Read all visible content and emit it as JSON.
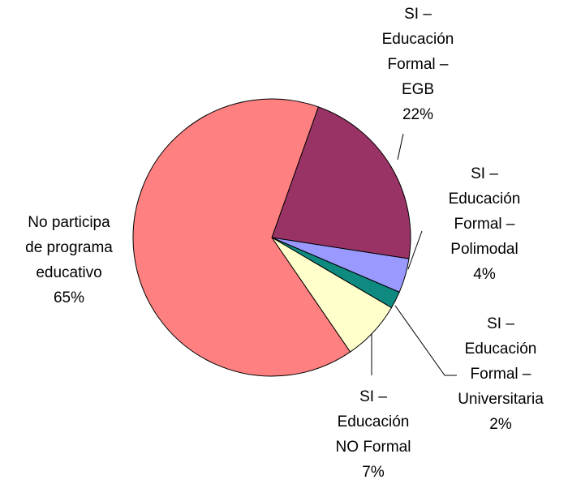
{
  "chart_data": {
    "type": "pie",
    "categories": [
      [
        "SI –",
        "Educación",
        "Formal –",
        "EGB"
      ],
      [
        "SI –",
        "Educación",
        "Formal –",
        "Polimodal"
      ],
      [
        "SI –",
        "Educación",
        "Formal –",
        "Universitaria"
      ],
      [
        "SI –",
        "Educación",
        "NO Formal"
      ],
      [
        "No participa",
        "de programa",
        "educativo"
      ]
    ],
    "values": [
      22,
      4,
      2,
      7,
      65
    ],
    "value_labels": [
      "22%",
      "4%",
      "2%",
      "7%",
      "65%"
    ],
    "colors": [
      "#993366",
      "#9999ff",
      "#0f8a80",
      "#ffffcc",
      "#ff8080"
    ]
  }
}
